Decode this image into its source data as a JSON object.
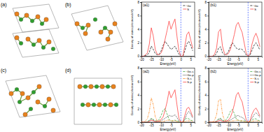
{
  "structures": [
    {
      "label": "(a)"
    },
    {
      "label": "(b)"
    },
    {
      "label": "(c)"
    },
    {
      "label": "(d)"
    }
  ],
  "chart_data": [
    {
      "type": "line",
      "title": "(a1)",
      "x_label": "Energy(eV)",
      "y_label": "Density of states(electrons/eV)",
      "x": [
        -20,
        -19,
        -18,
        -17,
        -16,
        -15,
        -14,
        -13,
        -12,
        -11,
        -10,
        -9,
        -8,
        -7,
        -6,
        -5,
        -4,
        -3,
        -2,
        -1,
        0,
        1,
        2,
        3,
        4,
        5,
        6
      ],
      "xlim": [
        -20,
        7
      ],
      "xticks": [
        -20,
        -15,
        -10,
        -5,
        0,
        5
      ],
      "ylim": [
        0,
        8
      ],
      "yticks": [
        0,
        2,
        4,
        6,
        8
      ],
      "fermi_level": 0,
      "legend": "upper right",
      "series": [
        {
          "name": "Ge",
          "color": "#000000",
          "line_style": "dashed",
          "values": [
            0,
            0,
            0.1,
            0.2,
            0.6,
            1.5,
            1.0,
            0.4,
            0.2,
            0.3,
            0.8,
            1.6,
            2.2,
            1.8,
            1.4,
            1.0,
            1.2,
            1.5,
            0.9,
            0.3,
            0,
            0,
            0.8,
            1.8,
            2.2,
            1.6,
            0.8
          ]
        },
        {
          "name": "S",
          "color": "#ff2a2a",
          "line_style": "solid",
          "values": [
            0,
            0,
            0.2,
            0.5,
            1.8,
            4.2,
            3.0,
            1.0,
            0.3,
            0.2,
            0.5,
            1.2,
            2.5,
            3.8,
            5.2,
            4.0,
            4.8,
            5.5,
            3.0,
            0.8,
            0,
            0,
            1.5,
            3.2,
            3.6,
            2.4,
            1.2
          ]
        }
      ]
    },
    {
      "type": "line",
      "title": "(b1)",
      "x_label": "Energy(eV)",
      "y_label": "Density of states(electrons/eV)",
      "x": [
        -20,
        -19,
        -18,
        -17,
        -16,
        -15,
        -14,
        -13,
        -12,
        -11,
        -10,
        -9,
        -8,
        -7,
        -6,
        -5,
        -4,
        -3,
        -2,
        -1,
        0,
        1,
        2,
        3,
        4,
        5,
        6
      ],
      "xlim": [
        -20,
        7
      ],
      "xticks": [
        -20,
        -15,
        -10,
        -5,
        0,
        5
      ],
      "ylim": [
        0,
        8
      ],
      "yticks": [
        0,
        2,
        4,
        6,
        8
      ],
      "fermi_level": 0,
      "legend": "upper right",
      "series": [
        {
          "name": "Ge",
          "color": "#000000",
          "line_style": "dashed",
          "values": [
            0,
            0,
            0,
            0.1,
            0.4,
            1.2,
            1.4,
            0.5,
            0.2,
            0.3,
            0.7,
            1.4,
            2.0,
            1.6,
            1.2,
            1.0,
            1.1,
            1.0,
            0.7,
            0.2,
            0,
            0.2,
            0.9,
            1.6,
            2.0,
            1.5,
            0.9
          ]
        },
        {
          "name": "S",
          "color": "#ff2a2a",
          "line_style": "solid",
          "values": [
            0,
            0,
            0,
            0.3,
            1.2,
            3.6,
            4.0,
            1.5,
            0.4,
            0.2,
            0.4,
            1.0,
            2.0,
            3.2,
            4.6,
            5.0,
            4.2,
            3.5,
            2.0,
            0.5,
            0,
            0.4,
            1.8,
            2.8,
            3.4,
            2.6,
            1.4
          ]
        }
      ]
    },
    {
      "type": "line",
      "title": "(a2)",
      "x_label": "Energy(eV)",
      "y_label": "Density of states(electrons/eV)",
      "x": [
        -20,
        -19,
        -18,
        -17,
        -16,
        -15,
        -14,
        -13,
        -12,
        -11,
        -10,
        -9,
        -8,
        -7,
        -6,
        -5,
        -4,
        -3,
        -2,
        -1,
        0,
        1,
        2,
        3,
        4,
        5,
        6
      ],
      "xlim": [
        -20,
        7
      ],
      "xticks": [
        -20,
        -15,
        -10,
        -5,
        0,
        5
      ],
      "ylim": [
        0,
        8
      ],
      "yticks": [
        0,
        2,
        4,
        6,
        8
      ],
      "fermi_level": 0,
      "legend": "upper right",
      "series": [
        {
          "name": "Ge-s",
          "color": "#2ca02c",
          "line_style": "dashed",
          "values": [
            0,
            0,
            0,
            0.1,
            0.3,
            0.6,
            0.4,
            0.2,
            0.2,
            0.4,
            1.0,
            1.8,
            2.0,
            1.2,
            0.4,
            0.2,
            0.2,
            0.3,
            0.2,
            0.1,
            0,
            0,
            0.4,
            0.6,
            0.5,
            0.3,
            0.2
          ]
        },
        {
          "name": "Ge-p",
          "color": "#000000",
          "line_style": "dotted",
          "values": [
            0,
            0,
            0,
            0,
            0.2,
            0.5,
            0.3,
            0.1,
            0.1,
            0.1,
            0.2,
            0.4,
            0.6,
            0.8,
            1.0,
            0.9,
            0.9,
            1.1,
            0.7,
            0.2,
            0,
            0,
            0.5,
            1.2,
            1.6,
            1.2,
            0.6
          ]
        },
        {
          "name": "S-s",
          "color": "#ff7f0e",
          "line_style": "dashdot",
          "values": [
            0,
            0,
            0.2,
            0.5,
            1.6,
            3.6,
            2.6,
            0.8,
            0.2,
            0.1,
            0.1,
            0.1,
            0.2,
            0.3,
            0.3,
            0.2,
            0.2,
            0.2,
            0.1,
            0,
            0,
            0,
            0.1,
            0.2,
            0.2,
            0.2,
            0.1
          ]
        },
        {
          "name": "S-p",
          "color": "#ff2a2a",
          "line_style": "solid",
          "values": [
            0,
            0,
            0,
            0,
            0.1,
            0.3,
            0.2,
            0.1,
            0.1,
            0.2,
            0.4,
            0.8,
            1.8,
            3.0,
            4.6,
            3.6,
            4.2,
            4.8,
            2.6,
            0.6,
            0,
            0,
            1.0,
            2.0,
            2.2,
            1.6,
            0.8
          ]
        }
      ]
    },
    {
      "type": "line",
      "title": "(b2)",
      "x_label": "Energy(eV)",
      "y_label": "Density of states(electrons/eV)",
      "x": [
        -20,
        -19,
        -18,
        -17,
        -16,
        -15,
        -14,
        -13,
        -12,
        -11,
        -10,
        -9,
        -8,
        -7,
        -6,
        -5,
        -4,
        -3,
        -2,
        -1,
        0,
        1,
        2,
        3,
        4,
        5,
        6
      ],
      "xlim": [
        -20,
        7
      ],
      "xticks": [
        -20,
        -15,
        -10,
        -5,
        0,
        5
      ],
      "ylim": [
        0,
        8
      ],
      "yticks": [
        0,
        2,
        4,
        6,
        8
      ],
      "fermi_level": 0,
      "legend": "upper right",
      "series": [
        {
          "name": "Ge-s",
          "color": "#2ca02c",
          "line_style": "dashed",
          "values": [
            0,
            0,
            0,
            0,
            0.2,
            0.5,
            0.6,
            0.3,
            0.2,
            0.4,
            0.9,
            1.6,
            1.9,
            1.3,
            0.5,
            0.3,
            0.2,
            0.2,
            0.2,
            0.1,
            0,
            0.1,
            0.3,
            0.5,
            0.5,
            0.3,
            0.2
          ]
        },
        {
          "name": "Ge-p",
          "color": "#000000",
          "line_style": "dotted",
          "values": [
            0,
            0,
            0,
            0,
            0.1,
            0.4,
            0.5,
            0.2,
            0.1,
            0.1,
            0.2,
            0.3,
            0.5,
            0.7,
            0.9,
            1.0,
            0.8,
            0.7,
            0.5,
            0.1,
            0,
            0.2,
            0.6,
            1.1,
            1.4,
            1.1,
            0.7
          ]
        },
        {
          "name": "S-s",
          "color": "#ff7f0e",
          "line_style": "dashdot",
          "values": [
            0,
            0,
            0,
            0.3,
            1.1,
            3.2,
            3.4,
            1.2,
            0.3,
            0.1,
            0.1,
            0.1,
            0.2,
            0.2,
            0.3,
            0.3,
            0.2,
            0.2,
            0.1,
            0,
            0,
            0,
            0.1,
            0.2,
            0.2,
            0.2,
            0.1
          ]
        },
        {
          "name": "S-p",
          "color": "#ff2a2a",
          "line_style": "solid",
          "values": [
            0,
            0,
            0,
            0,
            0.1,
            0.2,
            0.3,
            0.1,
            0.1,
            0.2,
            0.3,
            0.7,
            1.5,
            2.6,
            4.0,
            4.4,
            3.6,
            3.0,
            1.6,
            0.4,
            0,
            0.2,
            1.2,
            1.8,
            2.1,
            1.6,
            0.9
          ]
        }
      ]
    }
  ]
}
